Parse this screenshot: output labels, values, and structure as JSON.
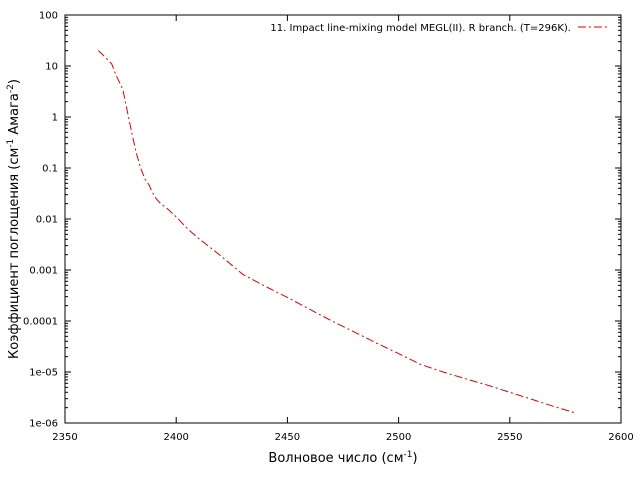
{
  "chart_data": {
    "type": "line",
    "xlabel": "Волновое число (см",
    "xlabel_sup": "-1",
    "xlabel_end": ")",
    "ylabel": "Коэффициент поглощения (см",
    "ylabel_sup1": "-1",
    "ylabel_mid": " Амага",
    "ylabel_sup2": "-2",
    "ylabel_end": ")",
    "xlim": [
      2350,
      2600
    ],
    "ylim": [
      1e-06,
      100
    ],
    "y_scale": "log",
    "x_ticks": [
      "2350",
      "2400",
      "2450",
      "2500",
      "2550",
      "2600"
    ],
    "y_ticks": [
      "1e-06",
      "1e-05",
      "0.0001",
      "0.001",
      "0.01",
      "0.1",
      "1",
      "10",
      "100"
    ],
    "grid": false,
    "legend_position": "top-right",
    "series": [
      {
        "name": "11. Impact line-mixing model MEGL(II). R branch. (T=296K).",
        "color": "#e00000",
        "line_style": "dash-dot",
        "x": [
          2365,
          2368,
          2371,
          2373,
          2376,
          2378,
          2380,
          2382,
          2384,
          2386,
          2388,
          2389,
          2391,
          2393,
          2396,
          2400,
          2405,
          2410,
          2420,
          2430,
          2440,
          2450,
          2460,
          2470,
          2480,
          2490,
          2500,
          2510,
          2520,
          2530,
          2540,
          2550,
          2560,
          2570,
          2579
        ],
        "y": [
          20,
          15,
          11,
          6.5,
          3.5,
          1.3,
          0.5,
          0.2,
          0.1,
          0.06,
          0.045,
          0.035,
          0.025,
          0.02,
          0.016,
          0.011,
          0.0065,
          0.0042,
          0.0019,
          0.00082,
          0.00048,
          0.00029,
          0.00017,
          0.0001,
          6.1e-05,
          3.7e-05,
          2.3e-05,
          1.4e-05,
          1e-05,
          7.4e-06,
          5.5e-06,
          4e-06,
          2.9e-06,
          2.1e-06,
          1.6e-06
        ]
      }
    ]
  }
}
